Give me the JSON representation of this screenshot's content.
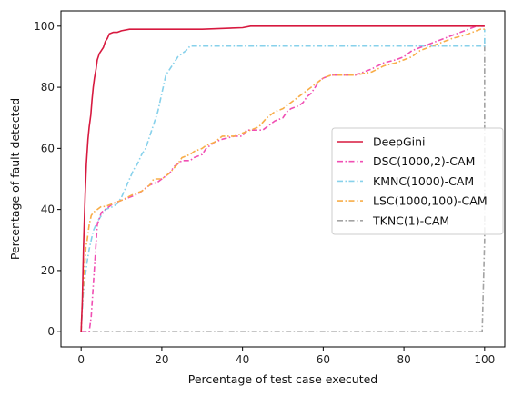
{
  "chart_data": {
    "type": "line",
    "xlabel": "Percentage of test case executed",
    "ylabel": "Percentage of fault detected",
    "xlim": [
      -5,
      105
    ],
    "ylim": [
      -5,
      105
    ],
    "xticks": [
      0,
      20,
      40,
      60,
      80,
      100
    ],
    "yticks": [
      0,
      20,
      40,
      60,
      80,
      100
    ],
    "grid": false,
    "legend_position": "center-right",
    "series": [
      {
        "name": "DeepGini",
        "color": "#d7193f",
        "dash": "solid",
        "points": [
          [
            0,
            0
          ],
          [
            0.3,
            10
          ],
          [
            0.6,
            28
          ],
          [
            1,
            45
          ],
          [
            1.3,
            55
          ],
          [
            1.7,
            63
          ],
          [
            2,
            67
          ],
          [
            2.4,
            71
          ],
          [
            2.7,
            76
          ],
          [
            3,
            80
          ],
          [
            3.3,
            83
          ],
          [
            3.7,
            86
          ],
          [
            4,
            89
          ],
          [
            4.5,
            91
          ],
          [
            5,
            92
          ],
          [
            5.5,
            93
          ],
          [
            6,
            95
          ],
          [
            6.5,
            96
          ],
          [
            7,
            97.5
          ],
          [
            8,
            98
          ],
          [
            9,
            98
          ],
          [
            10,
            98.5
          ],
          [
            12,
            99
          ],
          [
            20,
            99
          ],
          [
            30,
            99
          ],
          [
            40,
            99.5
          ],
          [
            42,
            100
          ],
          [
            60,
            100
          ],
          [
            80,
            100
          ],
          [
            99.5,
            100
          ],
          [
            100,
            100
          ]
        ]
      },
      {
        "name": "DSC(1000,2)-CAM",
        "color": "#f04fb3",
        "dash": "6,2.5,1.5,2.5",
        "points": [
          [
            0,
            0
          ],
          [
            2,
            0
          ],
          [
            2.5,
            5
          ],
          [
            3,
            15
          ],
          [
            3.5,
            25
          ],
          [
            4,
            35
          ],
          [
            5,
            39
          ],
          [
            6,
            40
          ],
          [
            8,
            42
          ],
          [
            10,
            43
          ],
          [
            12,
            44
          ],
          [
            14,
            45
          ],
          [
            15,
            46
          ],
          [
            17,
            48
          ],
          [
            19,
            49
          ],
          [
            20,
            50
          ],
          [
            22,
            52
          ],
          [
            23,
            54
          ],
          [
            24,
            55
          ],
          [
            25,
            56
          ],
          [
            27,
            56
          ],
          [
            28,
            57
          ],
          [
            30,
            58
          ],
          [
            31,
            60
          ],
          [
            33,
            62
          ],
          [
            35,
            63
          ],
          [
            38,
            64
          ],
          [
            40,
            64
          ],
          [
            41,
            66
          ],
          [
            42,
            66
          ],
          [
            45,
            66
          ],
          [
            47,
            68
          ],
          [
            48,
            69
          ],
          [
            50,
            70
          ],
          [
            51,
            72
          ],
          [
            52,
            73
          ],
          [
            54,
            74
          ],
          [
            55,
            75
          ],
          [
            56,
            77
          ],
          [
            57,
            78
          ],
          [
            58,
            80
          ],
          [
            59,
            82
          ],
          [
            60,
            83
          ],
          [
            62,
            84
          ],
          [
            68,
            84
          ],
          [
            70,
            85
          ],
          [
            72,
            86
          ],
          [
            75,
            88
          ],
          [
            78,
            89
          ],
          [
            80,
            90
          ],
          [
            82,
            92
          ],
          [
            84,
            93
          ],
          [
            86,
            94
          ],
          [
            88,
            95
          ],
          [
            90,
            96
          ],
          [
            92,
            97
          ],
          [
            94,
            98
          ],
          [
            96,
            99
          ],
          [
            98,
            100
          ],
          [
            100,
            100
          ]
        ]
      },
      {
        "name": "KMNC(1000)-CAM",
        "color": "#87d1eb",
        "dash": "6,2.5,1.5,2.5",
        "points": [
          [
            0,
            0
          ],
          [
            0.5,
            12
          ],
          [
            1,
            18
          ],
          [
            1.5,
            23
          ],
          [
            2,
            27
          ],
          [
            2.5,
            30
          ],
          [
            3,
            33
          ],
          [
            4,
            36
          ],
          [
            5,
            38
          ],
          [
            6,
            40
          ],
          [
            8,
            41
          ],
          [
            9,
            42
          ],
          [
            10,
            44
          ],
          [
            11,
            47
          ],
          [
            12,
            50
          ],
          [
            13,
            53
          ],
          [
            14,
            55
          ],
          [
            15,
            58
          ],
          [
            16,
            60
          ],
          [
            17,
            64
          ],
          [
            18,
            68
          ],
          [
            19,
            72
          ],
          [
            20,
            78
          ],
          [
            21,
            84
          ],
          [
            22,
            86
          ],
          [
            23,
            88
          ],
          [
            24,
            90
          ],
          [
            25,
            91
          ],
          [
            26,
            92
          ],
          [
            27,
            93.5
          ],
          [
            30,
            93.5
          ],
          [
            40,
            93.5
          ],
          [
            60,
            93.5
          ],
          [
            80,
            93.5
          ],
          [
            90,
            93.5
          ],
          [
            100,
            93.5
          ],
          [
            100,
            99
          ]
        ]
      },
      {
        "name": "LSC(1000,100)-CAM",
        "color": "#f8ad48",
        "dash": "6,2.5,1.5,2.5",
        "points": [
          [
            0,
            0
          ],
          [
            0.3,
            10
          ],
          [
            0.8,
            20
          ],
          [
            1.2,
            28
          ],
          [
            1.5,
            30
          ],
          [
            2,
            35
          ],
          [
            2.5,
            38
          ],
          [
            3,
            39
          ],
          [
            4,
            40
          ],
          [
            5,
            41
          ],
          [
            6,
            41
          ],
          [
            8,
            42
          ],
          [
            10,
            43
          ],
          [
            13,
            45
          ],
          [
            15,
            46
          ],
          [
            16,
            47
          ],
          [
            17,
            48
          ],
          [
            18,
            50
          ],
          [
            20,
            50
          ],
          [
            22,
            52
          ],
          [
            24,
            55
          ],
          [
            25,
            57
          ],
          [
            27,
            58
          ],
          [
            28,
            59
          ],
          [
            30,
            60
          ],
          [
            31,
            61
          ],
          [
            33,
            62
          ],
          [
            35,
            64
          ],
          [
            38,
            64
          ],
          [
            40,
            65
          ],
          [
            42,
            66
          ],
          [
            44,
            67
          ],
          [
            46,
            70
          ],
          [
            48,
            72
          ],
          [
            50,
            73
          ],
          [
            52,
            75
          ],
          [
            54,
            77
          ],
          [
            56,
            79
          ],
          [
            58,
            81
          ],
          [
            60,
            83
          ],
          [
            62,
            84
          ],
          [
            68,
            84
          ],
          [
            72,
            85
          ],
          [
            75,
            87
          ],
          [
            78,
            88
          ],
          [
            80,
            89
          ],
          [
            82,
            90
          ],
          [
            84,
            92
          ],
          [
            86,
            93
          ],
          [
            88,
            94
          ],
          [
            90,
            95
          ],
          [
            92,
            96
          ],
          [
            95,
            97
          ],
          [
            97,
            98
          ],
          [
            99,
            99
          ],
          [
            100,
            99
          ]
        ]
      },
      {
        "name": "TKNC(1)-CAM",
        "color": "#a3a3a3",
        "dash": "6,2.5,1.5,2.5",
        "points": [
          [
            0,
            0
          ],
          [
            20,
            0
          ],
          [
            40,
            0
          ],
          [
            60,
            0
          ],
          [
            80,
            0
          ],
          [
            99.4,
            0
          ],
          [
            99.5,
            5
          ],
          [
            99.7,
            15
          ],
          [
            100,
            30
          ],
          [
            100,
            60
          ],
          [
            100,
            96
          ]
        ]
      }
    ]
  }
}
